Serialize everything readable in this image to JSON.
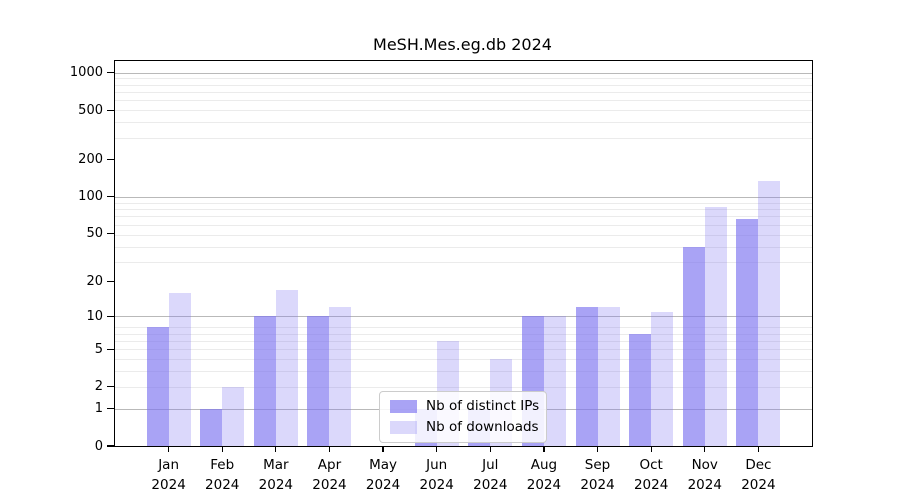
{
  "chart_data": {
    "type": "bar",
    "title": "MeSH.Mes.eg.db 2024",
    "scale": "log10(1+x)",
    "grid": true,
    "legend_position": "bottom-center",
    "categories": [
      "Jan",
      "Feb",
      "Mar",
      "Apr",
      "May",
      "Jun",
      "Jul",
      "Aug",
      "Sep",
      "Oct",
      "Nov",
      "Dec"
    ],
    "year_label": "2024",
    "yticks": [
      0,
      1,
      2,
      5,
      10,
      20,
      50,
      100,
      200,
      500,
      1000
    ],
    "ylim": [
      0,
      1250
    ],
    "series": [
      {
        "name": "Nb of distinct IPs",
        "color": "rgba(124,116,240,0.66)",
        "values": [
          8,
          1,
          10,
          10,
          0,
          1,
          1,
          10,
          12,
          7,
          39,
          66
        ]
      },
      {
        "name": "Nb of downloads",
        "color": "rgba(124,116,240,0.28)",
        "values": [
          16,
          2,
          17,
          12,
          0,
          6,
          4,
          10,
          12,
          11,
          83,
          135
        ]
      }
    ],
    "colors": {
      "major_grid": "#b9b9b9",
      "minor_grid": "#ebebeb",
      "spine": "#000000"
    }
  }
}
